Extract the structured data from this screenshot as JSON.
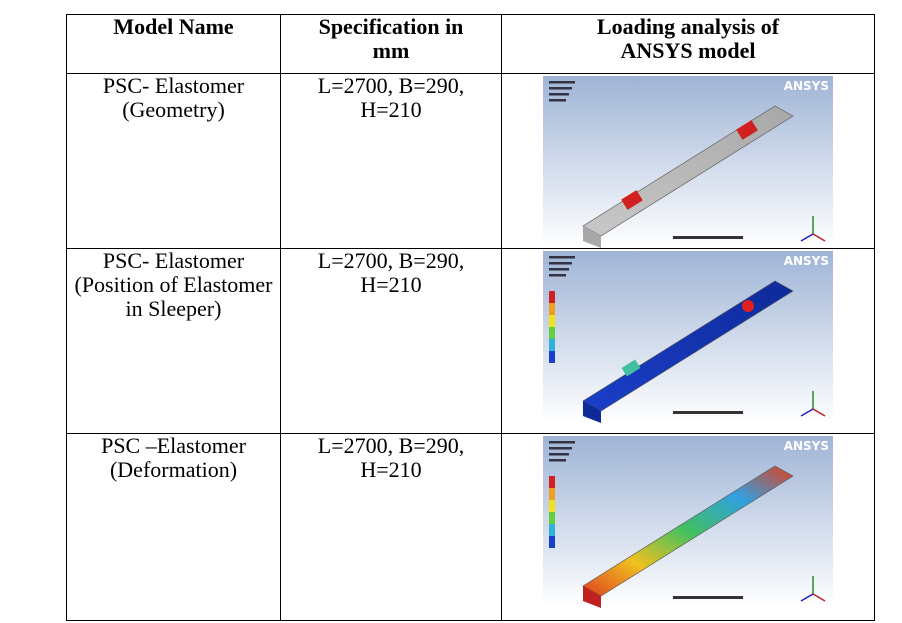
{
  "table": {
    "header": [
      [
        "Model Name"
      ],
      [
        "Specification in",
        "mm"
      ],
      [
        "Loading analysis of",
        "ANSYS model"
      ]
    ],
    "rows": [
      {
        "name": [
          "PSC- Elastomer",
          "(Geometry)"
        ],
        "spec": [
          "L=2700, B=290,",
          "H=210"
        ],
        "logo": "ANSYS"
      },
      {
        "name": [
          "PSC- Elastomer",
          "(Position of Elastomer",
          "in Sleeper)"
        ],
        "spec": [
          "L=2700, B=290,",
          "H=210"
        ],
        "logo": "ANSYS"
      },
      {
        "name": [
          "PSC –Elastomer",
          "(Deformation)"
        ],
        "spec": [
          "L=2700, B=290,",
          "H=210"
        ],
        "logo": "ANSYS"
      }
    ]
  }
}
